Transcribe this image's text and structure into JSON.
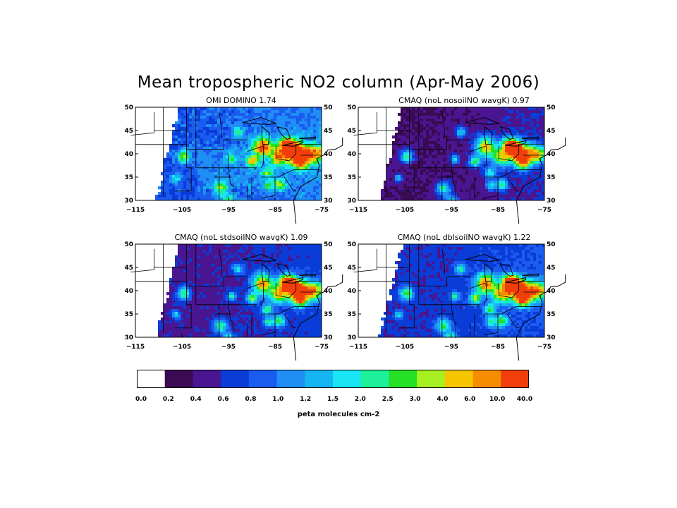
{
  "figure": {
    "title": "Mean tropospheric NO2 column (Apr-May 2006)"
  },
  "panels": [
    {
      "title": "OMI DOMINO 1.74"
    },
    {
      "title": "CMAQ (noL nosoilNO wavgK) 0.97"
    },
    {
      "title": "CMAQ (noL stdsoilNO wavgK) 1.09"
    },
    {
      "title": "CMAQ (noL dblsoilNO wavgK) 1.22"
    }
  ],
  "axes": {
    "lat_ticks": [
      "50",
      "45",
      "40",
      "35",
      "30"
    ],
    "lon_ticks": [
      "-115",
      "-105",
      "-95",
      "-85",
      "-75"
    ]
  },
  "colorbar": {
    "labels": [
      "0.0",
      "0.2",
      "0.4",
      "0.6",
      "0.8",
      "1.0",
      "1.2",
      "1.5",
      "2.0",
      "2.5",
      "3.0",
      "4.0",
      "6.0",
      "10.0",
      "40.0"
    ],
    "colors": [
      "#ffffff",
      "#3a0a52",
      "#4a1590",
      "#0a3cd8",
      "#1b5cf0",
      "#1f8ef5",
      "#14b5f0",
      "#18e6f5",
      "#1ef09a",
      "#25e025",
      "#a6f022",
      "#f6c500",
      "#f68c00",
      "#f23e0a"
    ],
    "units": "peta molecules cm-2"
  }
}
